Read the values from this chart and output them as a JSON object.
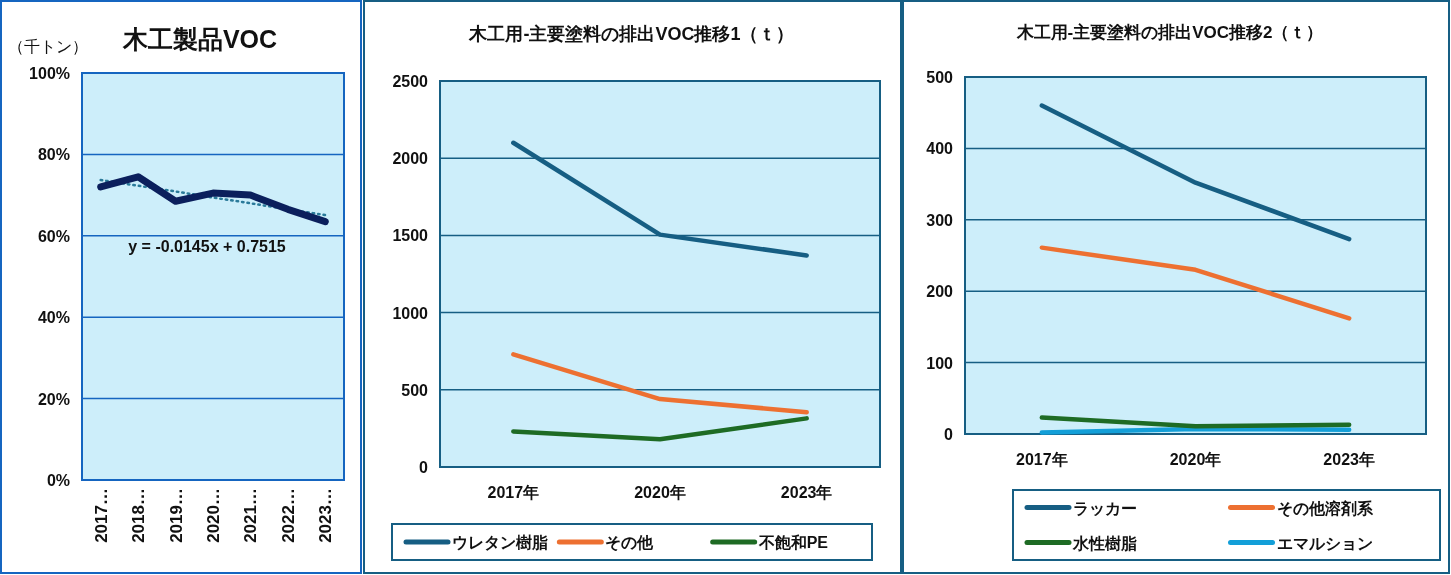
{
  "chart_data": [
    {
      "type": "line",
      "title": "木工製品VOC",
      "ylabel": "（千トン）",
      "categories": [
        "2017…",
        "2018…",
        "2019…",
        "2020…",
        "2021…",
        "2022…",
        "2023…"
      ],
      "series": [
        {
          "color": "#0b1f5c",
          "values": [
            72,
            74.5,
            68.5,
            70.5,
            70,
            66.5,
            63.5
          ]
        },
        {
          "color": "#2a7a9a",
          "line_style": "dotted",
          "values": [
            73.7,
            72.3,
            70.9,
            69.4,
            68.0,
            66.5,
            65.1
          ]
        }
      ],
      "ylim": [
        0,
        100
      ],
      "yticks": [
        {
          "value": 0,
          "label": "0%"
        },
        {
          "value": 20,
          "label": "20%"
        },
        {
          "value": 40,
          "label": "40%"
        },
        {
          "value": 60,
          "label": "60%"
        },
        {
          "value": 80,
          "label": "80%"
        },
        {
          "value": 100,
          "label": "100%"
        }
      ],
      "grid": "y",
      "annotations": [
        "y = -0.0145x + 0.7515"
      ]
    },
    {
      "type": "line",
      "title": "木工用-主要塗料の排出VOC推移1（ｔ）",
      "categories": [
        "2017年",
        "2020年",
        "2023年"
      ],
      "series": [
        {
          "name": "ウレタン樹脂",
          "color": "#165e83",
          "values": [
            2100,
            1505,
            1370
          ]
        },
        {
          "name": "その他",
          "color": "#ed7031",
          "values": [
            730,
            440,
            355
          ]
        },
        {
          "name": "不飽和PE",
          "color": "#1e6b24",
          "values": [
            230,
            180,
            315
          ]
        }
      ],
      "ylim": [
        0,
        2500
      ],
      "yticks": [
        0,
        500,
        1000,
        1500,
        2000,
        2500
      ],
      "grid": "y",
      "legend": "bottom"
    },
    {
      "type": "line",
      "title": "木工用-主要塗料の排出VOC推移2（ｔ）",
      "categories": [
        "2017年",
        "2020年",
        "2023年"
      ],
      "series": [
        {
          "name": "ラッカー",
          "color": "#165e83",
          "values": [
            460,
            352,
            273
          ]
        },
        {
          "name": "その他溶剤系",
          "color": "#ed7031",
          "values": [
            261,
            230,
            162
          ]
        },
        {
          "name": "水性樹脂",
          "color": "#1e6b24",
          "values": [
            23,
            11,
            13
          ]
        },
        {
          "name": "エマルション",
          "color": "#139fd8",
          "values": [
            2,
            7,
            6
          ]
        }
      ],
      "ylim": [
        0,
        500
      ],
      "yticks": [
        0,
        100,
        200,
        300,
        400,
        500
      ],
      "grid": "y",
      "legend": "bottom"
    }
  ]
}
